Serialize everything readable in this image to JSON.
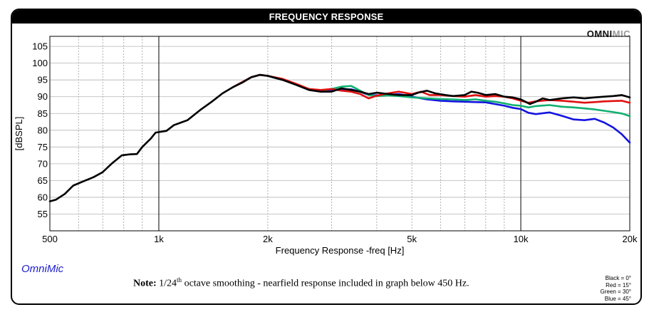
{
  "header": {
    "title": "FREQUENCY RESPONSE"
  },
  "brand": {
    "logo_main": "OMNI",
    "logo_accent": "MIC",
    "footer_name": "OmniMic"
  },
  "note": {
    "label": "Note:",
    "prefix": "1/24",
    "superscript": "th",
    "text": " octave smoothing - nearfield response included in graph below 450 Hz."
  },
  "legend": [
    {
      "text": "Black = 0°",
      "color": "#000000"
    },
    {
      "text": "Red = 15°",
      "color": "#e01010"
    },
    {
      "text": "Green = 30°",
      "color": "#10b070"
    },
    {
      "text": "Blue = 45°",
      "color": "#1414e0"
    }
  ],
  "chart_data": {
    "type": "line",
    "xscale": "log",
    "xlim": [
      500,
      20000
    ],
    "ylim": [
      50,
      108
    ],
    "grid": true,
    "xlabel": "Frequency Response -freq [Hz]",
    "ylabel": "[dBSPL]",
    "xticks": [
      {
        "value": 500,
        "label": "500"
      },
      {
        "value": 1000,
        "label": "1k"
      },
      {
        "value": 2000,
        "label": "2k"
      },
      {
        "value": 5000,
        "label": "5k"
      },
      {
        "value": 10000,
        "label": "10k"
      },
      {
        "value": 20000,
        "label": "20k"
      }
    ],
    "yticks": [
      55,
      60,
      65,
      70,
      75,
      80,
      85,
      90,
      95,
      100,
      105
    ],
    "series": [
      {
        "name": "Black = 0°",
        "color": "#000000",
        "points": [
          [
            500,
            58.8
          ],
          [
            520,
            59.3
          ],
          [
            550,
            61
          ],
          [
            580,
            63.5
          ],
          [
            620,
            64.8
          ],
          [
            660,
            66
          ],
          [
            700,
            67.5
          ],
          [
            740,
            70
          ],
          [
            790,
            72.5
          ],
          [
            830,
            72.8
          ],
          [
            870,
            72.9
          ],
          [
            900,
            75
          ],
          [
            950,
            77.5
          ],
          [
            980,
            79.3
          ],
          [
            1050,
            79.8
          ],
          [
            1100,
            81.5
          ],
          [
            1200,
            83
          ],
          [
            1300,
            86
          ],
          [
            1400,
            88.5
          ],
          [
            1500,
            91
          ],
          [
            1600,
            92.8
          ],
          [
            1700,
            94.2
          ],
          [
            1800,
            95.8
          ],
          [
            1900,
            96.5
          ],
          [
            2000,
            96.2
          ],
          [
            2200,
            95
          ],
          [
            2400,
            93.5
          ],
          [
            2600,
            92
          ],
          [
            2800,
            91.5
          ],
          [
            3000,
            91.5
          ],
          [
            3200,
            92.5
          ],
          [
            3400,
            92
          ],
          [
            3600,
            91.5
          ],
          [
            3800,
            90.8
          ],
          [
            4000,
            91.2
          ],
          [
            4300,
            90.8
          ],
          [
            4600,
            90.5
          ],
          [
            5000,
            90.5
          ],
          [
            5200,
            91.2
          ],
          [
            5500,
            91.8
          ],
          [
            5800,
            91
          ],
          [
            6200,
            90.5
          ],
          [
            6500,
            90.2
          ],
          [
            7000,
            90.5
          ],
          [
            7300,
            91.5
          ],
          [
            7600,
            91.2
          ],
          [
            8000,
            90.5
          ],
          [
            8500,
            90.8
          ],
          [
            9000,
            90
          ],
          [
            9500,
            89.8
          ],
          [
            10000,
            89.2
          ],
          [
            10300,
            88.5
          ],
          [
            10600,
            87.8
          ],
          [
            11000,
            88.5
          ],
          [
            11500,
            89.5
          ],
          [
            12000,
            89
          ],
          [
            13000,
            89.5
          ],
          [
            14000,
            89.8
          ],
          [
            15000,
            89.5
          ],
          [
            16000,
            89.8
          ],
          [
            17000,
            90
          ],
          [
            18000,
            90.2
          ],
          [
            19000,
            90.5
          ],
          [
            20000,
            89.8
          ]
        ]
      },
      {
        "name": "Red = 15°",
        "color": "#e01010",
        "points": [
          [
            1600,
            92.8
          ],
          [
            1800,
            95.8
          ],
          [
            1900,
            96.5
          ],
          [
            2000,
            96.2
          ],
          [
            2200,
            95.3
          ],
          [
            2400,
            93.8
          ],
          [
            2600,
            92.3
          ],
          [
            2800,
            92
          ],
          [
            3000,
            92.3
          ],
          [
            3200,
            91.8
          ],
          [
            3400,
            91.5
          ],
          [
            3600,
            90.8
          ],
          [
            3800,
            89.5
          ],
          [
            4000,
            90.3
          ],
          [
            4300,
            91
          ],
          [
            4600,
            91.5
          ],
          [
            5000,
            90.8
          ],
          [
            5300,
            91.5
          ],
          [
            5600,
            90.5
          ],
          [
            6000,
            90.5
          ],
          [
            6500,
            90.2
          ],
          [
            7000,
            90
          ],
          [
            7500,
            90.5
          ],
          [
            8000,
            90
          ],
          [
            8500,
            90.2
          ],
          [
            9000,
            90
          ],
          [
            9500,
            89.5
          ],
          [
            10000,
            88.8
          ],
          [
            10500,
            88.2
          ],
          [
            11000,
            88.6
          ],
          [
            12000,
            89
          ],
          [
            13000,
            88.8
          ],
          [
            14000,
            88.5
          ],
          [
            15000,
            88.2
          ],
          [
            16000,
            88.4
          ],
          [
            17000,
            88.6
          ],
          [
            18000,
            88.7
          ],
          [
            19000,
            88.8
          ],
          [
            20000,
            88.2
          ]
        ]
      },
      {
        "name": "Green = 30°",
        "color": "#10b070",
        "points": [
          [
            1600,
            92.8
          ],
          [
            1800,
            95.8
          ],
          [
            1900,
            96.5
          ],
          [
            2000,
            96.2
          ],
          [
            2200,
            95
          ],
          [
            2400,
            93.6
          ],
          [
            2600,
            92.3
          ],
          [
            2800,
            91.8
          ],
          [
            3000,
            92.3
          ],
          [
            3200,
            93
          ],
          [
            3400,
            93.2
          ],
          [
            3600,
            91.8
          ],
          [
            3800,
            90.5
          ],
          [
            4000,
            90.2
          ],
          [
            4300,
            90.4
          ],
          [
            4600,
            90.2
          ],
          [
            5000,
            89.8
          ],
          [
            5500,
            89.5
          ],
          [
            6000,
            89.3
          ],
          [
            6500,
            89.2
          ],
          [
            7000,
            89
          ],
          [
            7500,
            89.2
          ],
          [
            8000,
            88.8
          ],
          [
            8500,
            88.5
          ],
          [
            9000,
            88
          ],
          [
            9500,
            87.5
          ],
          [
            10000,
            87.3
          ],
          [
            10500,
            86.8
          ],
          [
            11000,
            87.2
          ],
          [
            12000,
            87.5
          ],
          [
            13000,
            87
          ],
          [
            14000,
            86.8
          ],
          [
            15000,
            86.5
          ],
          [
            16000,
            86.2
          ],
          [
            17000,
            85.8
          ],
          [
            18000,
            85.4
          ],
          [
            19000,
            85
          ],
          [
            20000,
            84.2
          ]
        ]
      },
      {
        "name": "Blue = 45°",
        "color": "#1414e0",
        "points": [
          [
            1600,
            92.8
          ],
          [
            1800,
            95.8
          ],
          [
            1900,
            96.5
          ],
          [
            2000,
            96.2
          ],
          [
            2200,
            95
          ],
          [
            2400,
            93.6
          ],
          [
            2600,
            92.2
          ],
          [
            2800,
            91.8
          ],
          [
            3000,
            92
          ],
          [
            3200,
            92.2
          ],
          [
            3400,
            92.2
          ],
          [
            3600,
            91.5
          ],
          [
            3800,
            90.5
          ],
          [
            4000,
            90.4
          ],
          [
            4300,
            90.5
          ],
          [
            4600,
            90.8
          ],
          [
            5000,
            90
          ],
          [
            5500,
            89.2
          ],
          [
            6000,
            88.8
          ],
          [
            6500,
            88.6
          ],
          [
            7000,
            88.5
          ],
          [
            7500,
            88.4
          ],
          [
            8000,
            88.3
          ],
          [
            8500,
            87.8
          ],
          [
            9000,
            87.3
          ],
          [
            9500,
            86.7
          ],
          [
            10000,
            86.3
          ],
          [
            10500,
            85.2
          ],
          [
            11000,
            84.8
          ],
          [
            12000,
            85.3
          ],
          [
            13000,
            84.3
          ],
          [
            14000,
            83.2
          ],
          [
            15000,
            83
          ],
          [
            16000,
            83.4
          ],
          [
            17000,
            82.3
          ],
          [
            18000,
            80.8
          ],
          [
            19000,
            78.8
          ],
          [
            20000,
            76.3
          ]
        ]
      }
    ]
  }
}
